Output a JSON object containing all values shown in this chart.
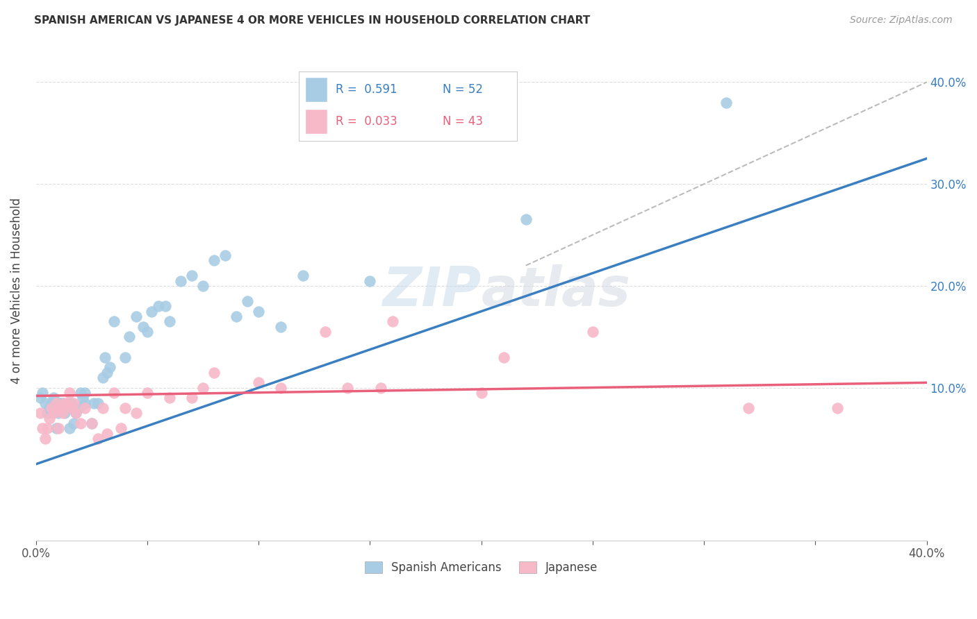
{
  "title": "SPANISH AMERICAN VS JAPANESE 4 OR MORE VEHICLES IN HOUSEHOLD CORRELATION CHART",
  "source": "Source: ZipAtlas.com",
  "ylabel": "4 or more Vehicles in Household",
  "xlim": [
    0.0,
    0.4
  ],
  "ylim": [
    -0.05,
    0.44
  ],
  "legend_blue_R": "R =  0.591",
  "legend_blue_N": "N = 52",
  "legend_pink_R": "R =  0.033",
  "legend_pink_N": "N = 43",
  "watermark": "ZIPatlas",
  "blue_color": "#a8cce4",
  "pink_color": "#f7b8c8",
  "blue_line_color": "#3a7fc1",
  "pink_line_color": "#e8607a",
  "dashed_line_color": "#bbbbbb",
  "blue_scatter_x": [
    0.002,
    0.003,
    0.004,
    0.005,
    0.006,
    0.007,
    0.008,
    0.009,
    0.01,
    0.011,
    0.012,
    0.013,
    0.014,
    0.015,
    0.016,
    0.017,
    0.018,
    0.019,
    0.02,
    0.021,
    0.022,
    0.022,
    0.025,
    0.026,
    0.028,
    0.03,
    0.031,
    0.032,
    0.033,
    0.035,
    0.04,
    0.042,
    0.045,
    0.048,
    0.05,
    0.052,
    0.055,
    0.058,
    0.06,
    0.065,
    0.07,
    0.075,
    0.08,
    0.085,
    0.09,
    0.095,
    0.1,
    0.11,
    0.12,
    0.15,
    0.22,
    0.31
  ],
  "blue_scatter_y": [
    0.09,
    0.095,
    0.085,
    0.075,
    0.08,
    0.085,
    0.09,
    0.06,
    0.075,
    0.085,
    0.085,
    0.075,
    0.08,
    0.06,
    0.085,
    0.065,
    0.075,
    0.08,
    0.095,
    0.09,
    0.095,
    0.085,
    0.065,
    0.085,
    0.085,
    0.11,
    0.13,
    0.115,
    0.12,
    0.165,
    0.13,
    0.15,
    0.17,
    0.16,
    0.155,
    0.175,
    0.18,
    0.18,
    0.165,
    0.205,
    0.21,
    0.2,
    0.225,
    0.23,
    0.17,
    0.185,
    0.175,
    0.16,
    0.21,
    0.205,
    0.265,
    0.38
  ],
  "pink_scatter_x": [
    0.002,
    0.003,
    0.004,
    0.005,
    0.006,
    0.007,
    0.008,
    0.009,
    0.01,
    0.011,
    0.012,
    0.013,
    0.014,
    0.015,
    0.016,
    0.017,
    0.018,
    0.02,
    0.022,
    0.025,
    0.028,
    0.03,
    0.032,
    0.035,
    0.038,
    0.04,
    0.045,
    0.05,
    0.06,
    0.07,
    0.075,
    0.08,
    0.1,
    0.11,
    0.13,
    0.14,
    0.155,
    0.16,
    0.2,
    0.21,
    0.25,
    0.32,
    0.36
  ],
  "pink_scatter_y": [
    0.075,
    0.06,
    0.05,
    0.06,
    0.07,
    0.08,
    0.075,
    0.085,
    0.06,
    0.08,
    0.075,
    0.085,
    0.085,
    0.095,
    0.08,
    0.085,
    0.075,
    0.065,
    0.08,
    0.065,
    0.05,
    0.08,
    0.055,
    0.095,
    0.06,
    0.08,
    0.075,
    0.095,
    0.09,
    0.09,
    0.1,
    0.115,
    0.105,
    0.1,
    0.155,
    0.1,
    0.1,
    0.165,
    0.095,
    0.13,
    0.155,
    0.08,
    0.08
  ],
  "blue_trend_x": [
    0.0,
    0.4
  ],
  "blue_trend_y": [
    0.025,
    0.325
  ],
  "pink_trend_x": [
    0.0,
    0.4
  ],
  "pink_trend_y": [
    0.092,
    0.105
  ],
  "dashed_trend_x": [
    0.22,
    0.4
  ],
  "dashed_trend_y": [
    0.22,
    0.4
  ],
  "ytick_values": [
    0.1,
    0.2,
    0.3,
    0.4
  ],
  "ytick_labels": [
    "10.0%",
    "20.0%",
    "30.0%",
    "40.0%"
  ]
}
